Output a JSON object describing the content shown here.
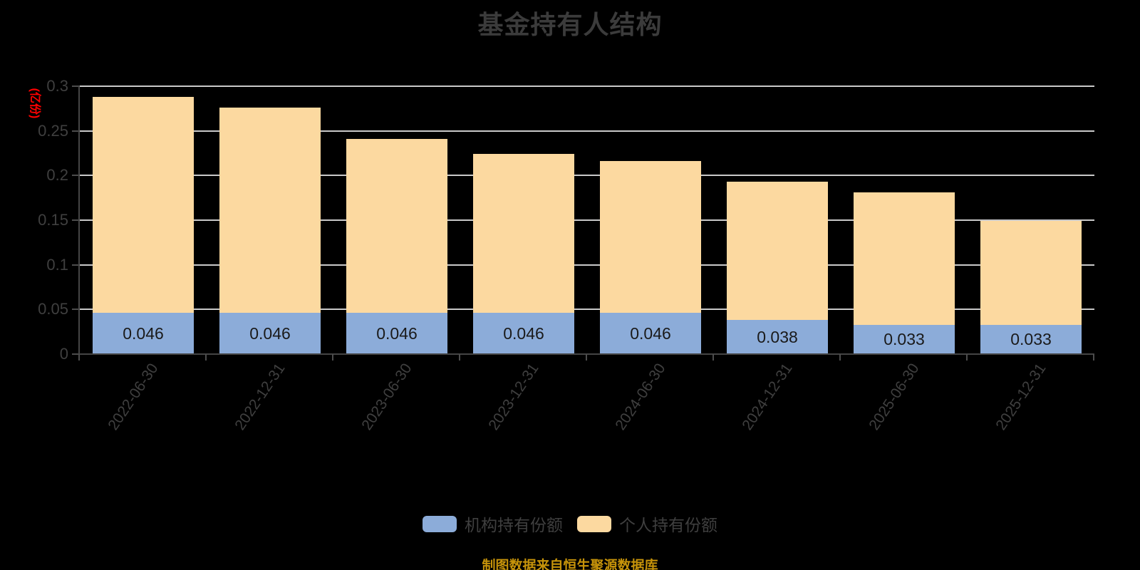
{
  "chart_data": {
    "type": "bar",
    "stacked": true,
    "title": "基金持有人结构",
    "ylabel": "(亿份)",
    "source": "制图数据来自恒生聚源数据库",
    "categories": [
      "2022-06-30",
      "2022-12-31",
      "2023-06-30",
      "2023-12-31",
      "2024-06-30",
      "2024-12-31",
      "2025-06-30",
      "2025-12-31"
    ],
    "series": [
      {
        "name": "机构持有份额",
        "color": "#8cacd9",
        "values": [
          0.046,
          0.046,
          0.046,
          0.046,
          0.046,
          0.038,
          0.033,
          0.033
        ],
        "labels": [
          "0.046",
          "0.046",
          "0.046",
          "0.046",
          "0.046",
          "0.038",
          "0.033",
          "0.033"
        ]
      },
      {
        "name": "个人持有份额",
        "color": "#fcd9a0",
        "values": [
          0.242,
          0.23,
          0.195,
          0.178,
          0.17,
          0.155,
          0.148,
          0.116
        ]
      }
    ],
    "totals": [
      0.288,
      0.276,
      0.241,
      0.224,
      0.216,
      0.193,
      0.181,
      0.149
    ],
    "ylim": [
      0,
      0.3
    ],
    "yticks": [
      {
        "value": 0,
        "label": "0"
      },
      {
        "value": 0.05,
        "label": "0.05"
      },
      {
        "value": 0.1,
        "label": "0.1"
      },
      {
        "value": 0.15,
        "label": "0.15"
      },
      {
        "value": 0.2,
        "label": "0.2"
      },
      {
        "value": 0.25,
        "label": "0.25"
      },
      {
        "value": 0.3,
        "label": "0.3"
      }
    ],
    "grid": true,
    "legend_position": "bottom"
  },
  "colors": {
    "background": "#000000",
    "gridline": "#c9c9c9",
    "axis": "#454545",
    "text": "#3f3f3f",
    "title": "#3b3b3b",
    "unit_label": "#ff0000",
    "source_note": "#c6930a",
    "bar_value_label": "#1a1a1a"
  }
}
